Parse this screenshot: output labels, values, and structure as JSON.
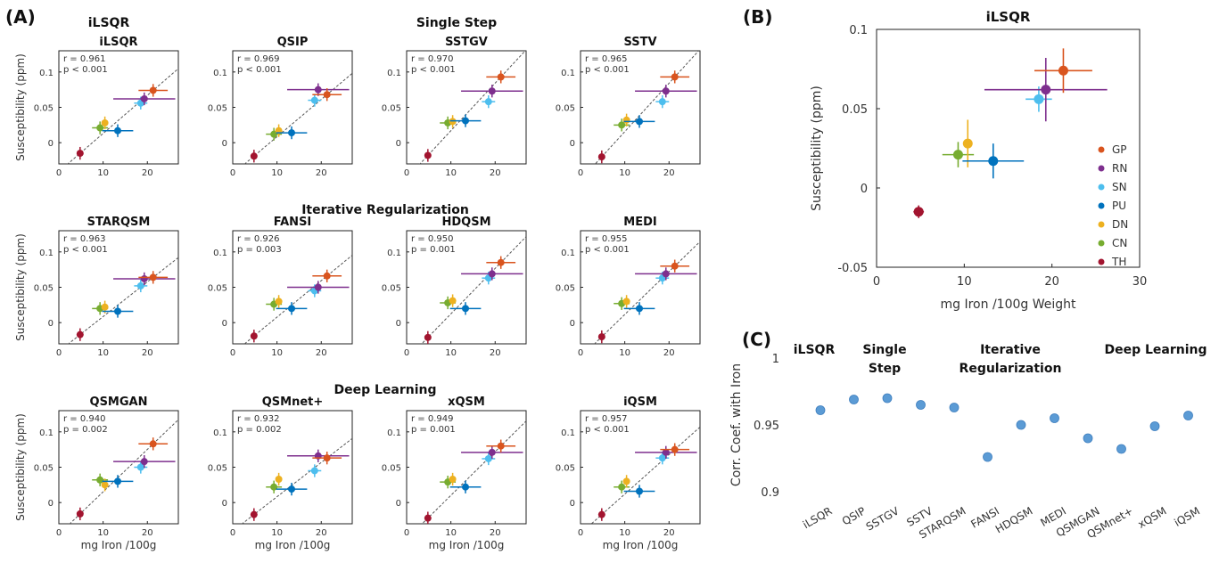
{
  "panel_labels": {
    "a": "(A)",
    "b": "(B)",
    "c": "(C)"
  },
  "colors": {
    "GP": "#d9541e",
    "RN": "#7e2f8e",
    "SN": "#4dbeee",
    "PU": "#0072bd",
    "DN": "#edb120",
    "CN": "#77ac30",
    "TH": "#a2142f",
    "marker_c": "#5b9bd5"
  },
  "panel_a": {
    "group_headers": {
      "iLSQR": "iLSQR",
      "single_step": "Single Step",
      "iterative": "Iterative Regularization",
      "deep": "Deep Learning"
    },
    "ylabel": "Susceptibility (ppm)",
    "xlabel": "mg Iron /100g",
    "x_ticks": [
      "0",
      "10",
      "20"
    ],
    "y_ticks": [
      "0",
      "0.05",
      "0.1"
    ],
    "r_prefix": "r = ",
    "p_prefix": "p ",
    "subplots": [
      {
        "title": "iLSQR",
        "r": "0.961",
        "p": "< 0.001"
      },
      {
        "title": "QSIP",
        "r": "0.969",
        "p": "< 0.001"
      },
      {
        "title": "SSTGV",
        "r": "0.970",
        "p": "< 0.001"
      },
      {
        "title": "SSTV",
        "r": "0.965",
        "p": "< 0.001"
      },
      {
        "title": "STARQSM",
        "r": "0.963",
        "p": "< 0.001"
      },
      {
        "title": "FANSI",
        "r": "0.926",
        "p": "= 0.003"
      },
      {
        "title": "HDQSM",
        "r": "0.950",
        "p": "= 0.001"
      },
      {
        "title": "MEDI",
        "r": "0.955",
        "p": "< 0.001"
      },
      {
        "title": "QSMGAN",
        "r": "0.940",
        "p": "= 0.002"
      },
      {
        "title": "QSMnet+",
        "r": "0.932",
        "p": "= 0.002"
      },
      {
        "title": "xQSM",
        "r": "0.949",
        "p": "= 0.001"
      },
      {
        "title": "iQSM",
        "r": "0.957",
        "p": "< 0.001"
      }
    ]
  },
  "panel_b": {
    "title": "iLSQR",
    "ylabel": "Susceptibility (ppm)",
    "xlabel": "mg Iron /100g Weight",
    "x_ticks": [
      "0",
      "10",
      "20",
      "30"
    ],
    "y_ticks": [
      "-0.05",
      "0",
      "0.05",
      "0.1"
    ],
    "legend": [
      "GP",
      "RN",
      "SN",
      "PU",
      "DN",
      "CN",
      "TH"
    ]
  },
  "panel_c": {
    "headers": {
      "iLSQR": "iLSQR",
      "single_step_1": "Single",
      "single_step_2": "Step",
      "iterative_1": "Iterative",
      "iterative_2": "Regularization",
      "deep": "Deep Learning"
    },
    "ylabel": "Corr. Coef. with Iron",
    "y_ticks": [
      "0.9",
      "0.95",
      "1"
    ]
  },
  "chart_data": [
    {
      "type": "scatter",
      "panel": "B",
      "title": "iLSQR",
      "xlabel": "mg Iron /100g Weight",
      "ylabel": "Susceptibility (ppm)",
      "xlim": [
        0,
        30
      ],
      "ylim": [
        -0.05,
        0.1
      ],
      "grid": false,
      "legend": "right",
      "series": [
        {
          "name": "GP",
          "x": 21.3,
          "y": 0.074,
          "xerr": 3.3,
          "yerr": 0.014
        },
        {
          "name": "RN",
          "x": 19.3,
          "y": 0.062,
          "xerr": 7.0,
          "yerr": 0.02
        },
        {
          "name": "SN",
          "x": 18.5,
          "y": 0.056,
          "xerr": 1.5,
          "yerr": 0.008
        },
        {
          "name": "PU",
          "x": 13.3,
          "y": 0.017,
          "xerr": 3.5,
          "yerr": 0.011
        },
        {
          "name": "DN",
          "x": 10.4,
          "y": 0.028,
          "xerr": 0.5,
          "yerr": 0.015
        },
        {
          "name": "CN",
          "x": 9.3,
          "y": 0.021,
          "xerr": 1.8,
          "yerr": 0.008
        },
        {
          "name": "TH",
          "x": 4.8,
          "y": -0.015,
          "xerr": 0.6,
          "yerr": 0.004
        }
      ]
    },
    {
      "type": "scatter",
      "panel": "C",
      "ylabel": "Corr. Coef. with Iron",
      "ylim": [
        0.9,
        1
      ],
      "categories": [
        "iLSQR",
        "QSIP",
        "SSTGV",
        "SSTV",
        "STARQSM",
        "FANSI",
        "HDQSM",
        "MEDI",
        "QSMGAN",
        "QSMnet+",
        "xQSM",
        "iQSM"
      ],
      "values": [
        0.961,
        0.969,
        0.97,
        0.965,
        0.963,
        0.926,
        0.95,
        0.955,
        0.94,
        0.932,
        0.949,
        0.957
      ]
    },
    {
      "type": "scatter",
      "panel": "A",
      "xlabel": "mg Iron /100g",
      "ylabel": "Susceptibility (ppm)",
      "xlim": [
        0,
        27
      ],
      "ylim": [
        -0.03,
        0.13
      ],
      "series_names": [
        "GP",
        "RN",
        "SN",
        "PU",
        "DN",
        "CN",
        "TH"
      ],
      "x": [
        21.3,
        19.3,
        18.5,
        13.3,
        10.4,
        9.3,
        4.8
      ],
      "xerr": [
        3.3,
        7.0,
        1.5,
        3.5,
        0.5,
        1.8,
        0.6
      ],
      "subplots": [
        {
          "method": "iLSQR",
          "y": [
            0.074,
            0.062,
            0.056,
            0.017,
            0.028,
            0.021,
            -0.015
          ]
        },
        {
          "method": "QSIP",
          "y": [
            0.068,
            0.075,
            0.06,
            0.014,
            0.017,
            0.012,
            -0.019
          ]
        },
        {
          "method": "SSTGV",
          "y": [
            0.093,
            0.073,
            0.058,
            0.031,
            0.03,
            0.028,
            -0.018
          ]
        },
        {
          "method": "SSTV",
          "y": [
            0.093,
            0.073,
            0.058,
            0.03,
            0.032,
            0.025,
            -0.02
          ]
        },
        {
          "method": "STARQSM",
          "y": [
            0.064,
            0.062,
            0.052,
            0.016,
            0.022,
            0.02,
            -0.017
          ]
        },
        {
          "method": "FANSI",
          "y": [
            0.066,
            0.05,
            0.045,
            0.02,
            0.03,
            0.026,
            -0.019
          ]
        },
        {
          "method": "HDQSM",
          "y": [
            0.085,
            0.069,
            0.063,
            0.02,
            0.031,
            0.028,
            -0.021
          ]
        },
        {
          "method": "MEDI",
          "y": [
            0.08,
            0.069,
            0.063,
            0.02,
            0.03,
            0.027,
            -0.02
          ]
        },
        {
          "method": "QSMGAN",
          "y": [
            0.083,
            0.058,
            0.05,
            0.03,
            0.025,
            0.032,
            -0.016
          ]
        },
        {
          "method": "QSMnet+",
          "y": [
            0.063,
            0.066,
            0.045,
            0.019,
            0.033,
            0.022,
            -0.017
          ]
        },
        {
          "method": "xQSM",
          "y": [
            0.08,
            0.071,
            0.062,
            0.022,
            0.033,
            0.029,
            -0.022
          ]
        },
        {
          "method": "iQSM",
          "y": [
            0.075,
            0.071,
            0.063,
            0.016,
            0.03,
            0.022,
            -0.017
          ]
        }
      ]
    }
  ]
}
